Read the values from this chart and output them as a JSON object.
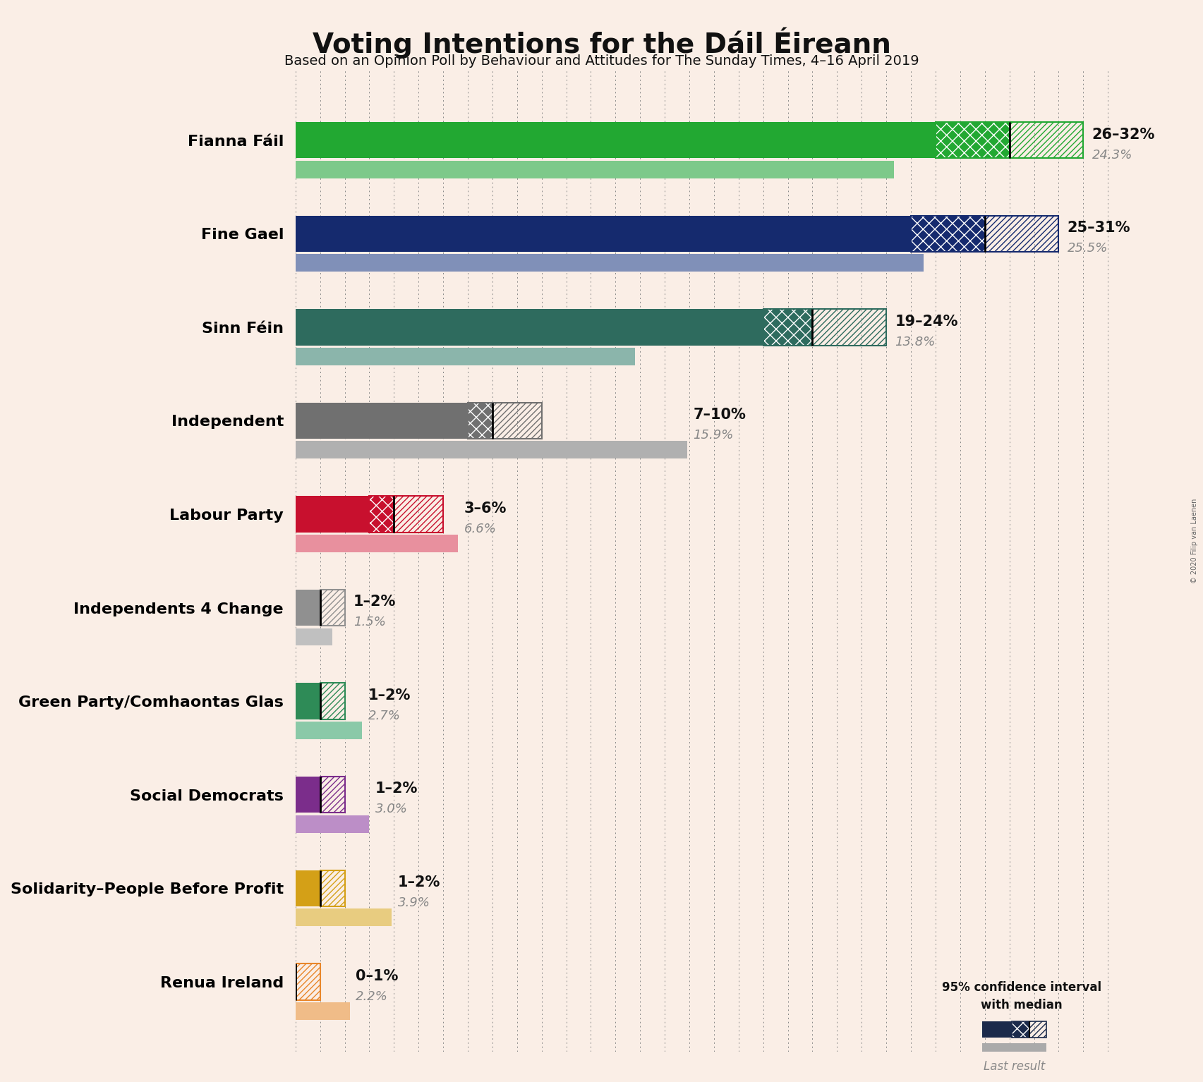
{
  "title": "Voting Intentions for the Dáil Éireann",
  "subtitle": "Based on an Opinion Poll by Behaviour and Attitudes for The Sunday Times, 4–16 April 2019",
  "copyright": "© 2020 Filip van Laenen",
  "background_color": "#faeee6",
  "parties": [
    {
      "name": "Fianna Fáil",
      "color": "#22A832",
      "color_light": "#7DC98A",
      "ci_low": 26,
      "ci_high": 32,
      "median": 29,
      "last": 24.3,
      "label": "26–32%",
      "last_label": "24.3%"
    },
    {
      "name": "Fine Gael",
      "color": "#152A6E",
      "color_light": "#8090B8",
      "ci_low": 25,
      "ci_high": 31,
      "median": 28,
      "last": 25.5,
      "label": "25–31%",
      "last_label": "25.5%"
    },
    {
      "name": "Sinn Féin",
      "color": "#2E6B5E",
      "color_light": "#8BB5AB",
      "ci_low": 19,
      "ci_high": 24,
      "median": 21,
      "last": 13.8,
      "label": "19–24%",
      "last_label": "13.8%"
    },
    {
      "name": "Independent",
      "color": "#707070",
      "color_light": "#B0B0B0",
      "ci_low": 7,
      "ci_high": 10,
      "median": 8,
      "last": 15.9,
      "label": "7–10%",
      "last_label": "15.9%"
    },
    {
      "name": "Labour Party",
      "color": "#C8102E",
      "color_light": "#E8909E",
      "ci_low": 3,
      "ci_high": 6,
      "median": 4,
      "last": 6.6,
      "label": "3–6%",
      "last_label": "6.6%"
    },
    {
      "name": "Independents 4 Change",
      "color": "#909090",
      "color_light": "#C0C0C0",
      "ci_low": 1,
      "ci_high": 2,
      "median": 1,
      "last": 1.5,
      "label": "1–2%",
      "last_label": "1.5%"
    },
    {
      "name": "Green Party/Comhaontas Glas",
      "color": "#2E8B57",
      "color_light": "#8AC9A8",
      "ci_low": 1,
      "ci_high": 2,
      "median": 1,
      "last": 2.7,
      "label": "1–2%",
      "last_label": "2.7%"
    },
    {
      "name": "Social Democrats",
      "color": "#7B2D8B",
      "color_light": "#BC8EC7",
      "ci_low": 1,
      "ci_high": 2,
      "median": 1,
      "last": 3.0,
      "label": "1–2%",
      "last_label": "3.0%"
    },
    {
      "name": "Solidarity–People Before Profit",
      "color": "#D4A017",
      "color_light": "#E8CC80",
      "ci_low": 1,
      "ci_high": 2,
      "median": 1,
      "last": 3.9,
      "label": "1–2%",
      "last_label": "3.9%"
    },
    {
      "name": "Renua Ireland",
      "color": "#E8862A",
      "color_light": "#F0BC88",
      "ci_low": 0,
      "ci_high": 1,
      "median": 0,
      "last": 2.2,
      "label": "0–1%",
      "last_label": "2.2%"
    }
  ],
  "axis_max": 34,
  "dotted_line_color": "#888888",
  "label_color_dark": "#111111",
  "label_color_last": "#888888",
  "legend_dark_color": "#1B2A4B"
}
